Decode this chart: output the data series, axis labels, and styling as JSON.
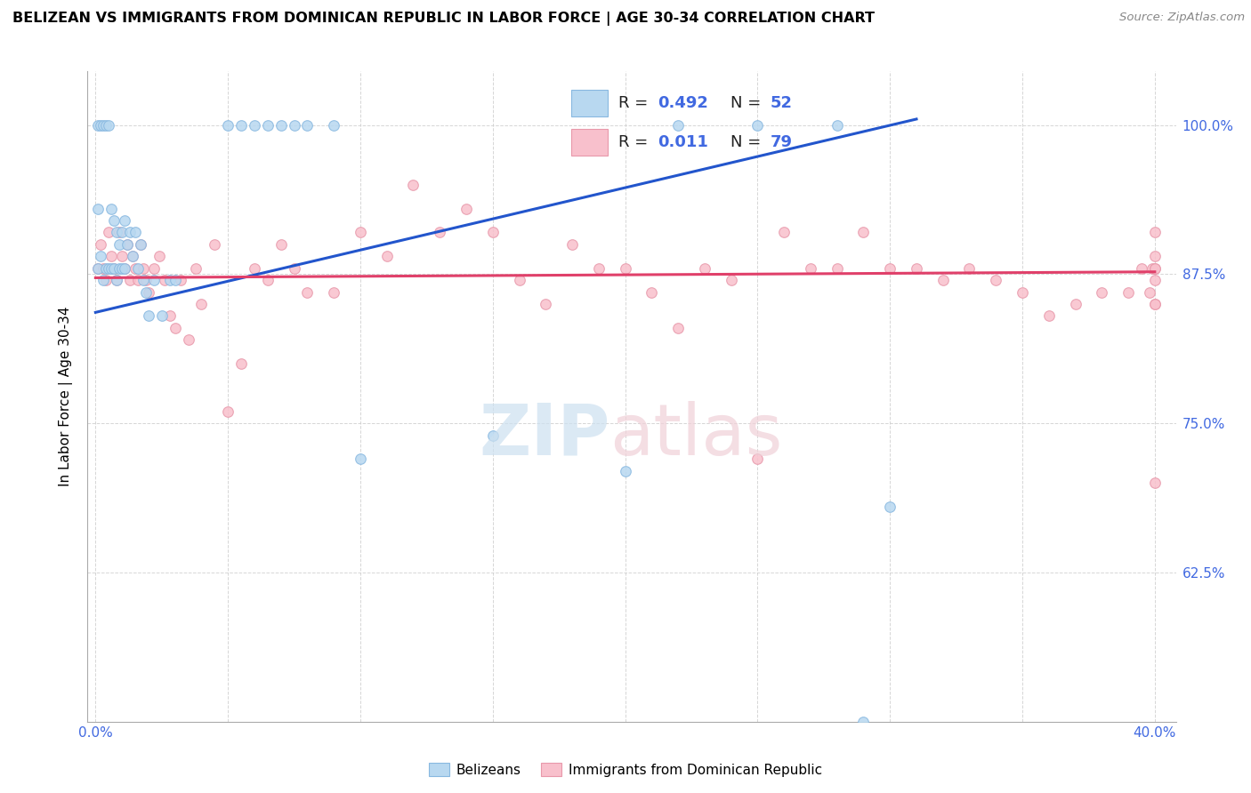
{
  "title": "BELIZEAN VS IMMIGRANTS FROM DOMINICAN REPUBLIC IN LABOR FORCE | AGE 30-34 CORRELATION CHART",
  "source": "Source: ZipAtlas.com",
  "ylabel": "In Labor Force | Age 30-34",
  "ytick_labels": [
    "62.5%",
    "75.0%",
    "87.5%",
    "100.0%"
  ],
  "ytick_vals": [
    0.625,
    0.75,
    0.875,
    1.0
  ],
  "xtick_labels": [
    "0.0%",
    "",
    "",
    "",
    "",
    "",
    "",
    "",
    "40.0%"
  ],
  "xtick_vals": [
    0.0,
    0.05,
    0.1,
    0.15,
    0.2,
    0.25,
    0.3,
    0.35,
    0.4
  ],
  "color_blue_fill": "#b8d8f0",
  "color_blue_edge": "#88b8e0",
  "color_pink_fill": "#f8c0cc",
  "color_pink_edge": "#e898aa",
  "color_blue_line": "#2255cc",
  "color_pink_line": "#e0406a",
  "color_tick": "#4169E1",
  "color_grid": "#cccccc",
  "watermark_zip_color": "#cce0f0",
  "watermark_atlas_color": "#f0d0d8",
  "blue_x": [
    0.001,
    0.001,
    0.001,
    0.002,
    0.002,
    0.003,
    0.003,
    0.004,
    0.004,
    0.005,
    0.005,
    0.006,
    0.006,
    0.007,
    0.007,
    0.008,
    0.008,
    0.009,
    0.009,
    0.01,
    0.01,
    0.011,
    0.011,
    0.012,
    0.013,
    0.014,
    0.015,
    0.016,
    0.017,
    0.018,
    0.019,
    0.02,
    0.022,
    0.025,
    0.028,
    0.03,
    0.05,
    0.055,
    0.06,
    0.065,
    0.07,
    0.075,
    0.08,
    0.09,
    0.1,
    0.15,
    0.2,
    0.22,
    0.25,
    0.28,
    0.29,
    0.3
  ],
  "blue_y": [
    1.0,
    0.93,
    0.88,
    1.0,
    0.89,
    1.0,
    0.87,
    1.0,
    0.88,
    1.0,
    0.88,
    0.93,
    0.88,
    0.92,
    0.88,
    0.91,
    0.87,
    0.9,
    0.88,
    0.91,
    0.88,
    0.92,
    0.88,
    0.9,
    0.91,
    0.89,
    0.91,
    0.88,
    0.9,
    0.87,
    0.86,
    0.84,
    0.87,
    0.84,
    0.87,
    0.87,
    1.0,
    1.0,
    1.0,
    1.0,
    1.0,
    1.0,
    1.0,
    1.0,
    0.72,
    0.74,
    0.71,
    1.0,
    1.0,
    1.0,
    0.5,
    0.68
  ],
  "pink_x": [
    0.001,
    0.002,
    0.003,
    0.004,
    0.005,
    0.006,
    0.007,
    0.008,
    0.009,
    0.01,
    0.011,
    0.012,
    0.013,
    0.014,
    0.015,
    0.016,
    0.017,
    0.018,
    0.019,
    0.02,
    0.022,
    0.024,
    0.026,
    0.028,
    0.03,
    0.032,
    0.035,
    0.038,
    0.04,
    0.045,
    0.05,
    0.055,
    0.06,
    0.065,
    0.07,
    0.075,
    0.08,
    0.09,
    0.1,
    0.11,
    0.12,
    0.13,
    0.14,
    0.15,
    0.16,
    0.17,
    0.18,
    0.19,
    0.2,
    0.21,
    0.22,
    0.23,
    0.24,
    0.25,
    0.26,
    0.27,
    0.28,
    0.29,
    0.3,
    0.31,
    0.32,
    0.33,
    0.34,
    0.35,
    0.36,
    0.37,
    0.38,
    0.39,
    0.395,
    0.398,
    0.399,
    0.4,
    0.4,
    0.4,
    0.4,
    0.4,
    0.4,
    0.4,
    0.4
  ],
  "pink_y": [
    0.88,
    0.9,
    0.88,
    0.87,
    0.91,
    0.89,
    0.88,
    0.87,
    0.91,
    0.89,
    0.88,
    0.9,
    0.87,
    0.89,
    0.88,
    0.87,
    0.9,
    0.88,
    0.87,
    0.86,
    0.88,
    0.89,
    0.87,
    0.84,
    0.83,
    0.87,
    0.82,
    0.88,
    0.85,
    0.9,
    0.76,
    0.8,
    0.88,
    0.87,
    0.9,
    0.88,
    0.86,
    0.86,
    0.91,
    0.89,
    0.95,
    0.91,
    0.93,
    0.91,
    0.87,
    0.85,
    0.9,
    0.88,
    0.88,
    0.86,
    0.83,
    0.88,
    0.87,
    0.72,
    0.91,
    0.88,
    0.88,
    0.91,
    0.88,
    0.88,
    0.87,
    0.88,
    0.87,
    0.86,
    0.84,
    0.85,
    0.86,
    0.86,
    0.88,
    0.86,
    0.88,
    0.85,
    0.89,
    0.87,
    0.91,
    0.88,
    0.85,
    0.7,
    0.88
  ],
  "blue_line_x0": 0.0,
  "blue_line_x1": 0.31,
  "blue_line_y0": 0.843,
  "blue_line_y1": 1.005,
  "pink_line_x0": 0.0,
  "pink_line_x1": 0.4,
  "pink_line_y0": 0.872,
  "pink_line_y1": 0.877,
  "xmin": -0.003,
  "xmax": 0.408,
  "ymin": 0.5,
  "ymax": 1.045
}
